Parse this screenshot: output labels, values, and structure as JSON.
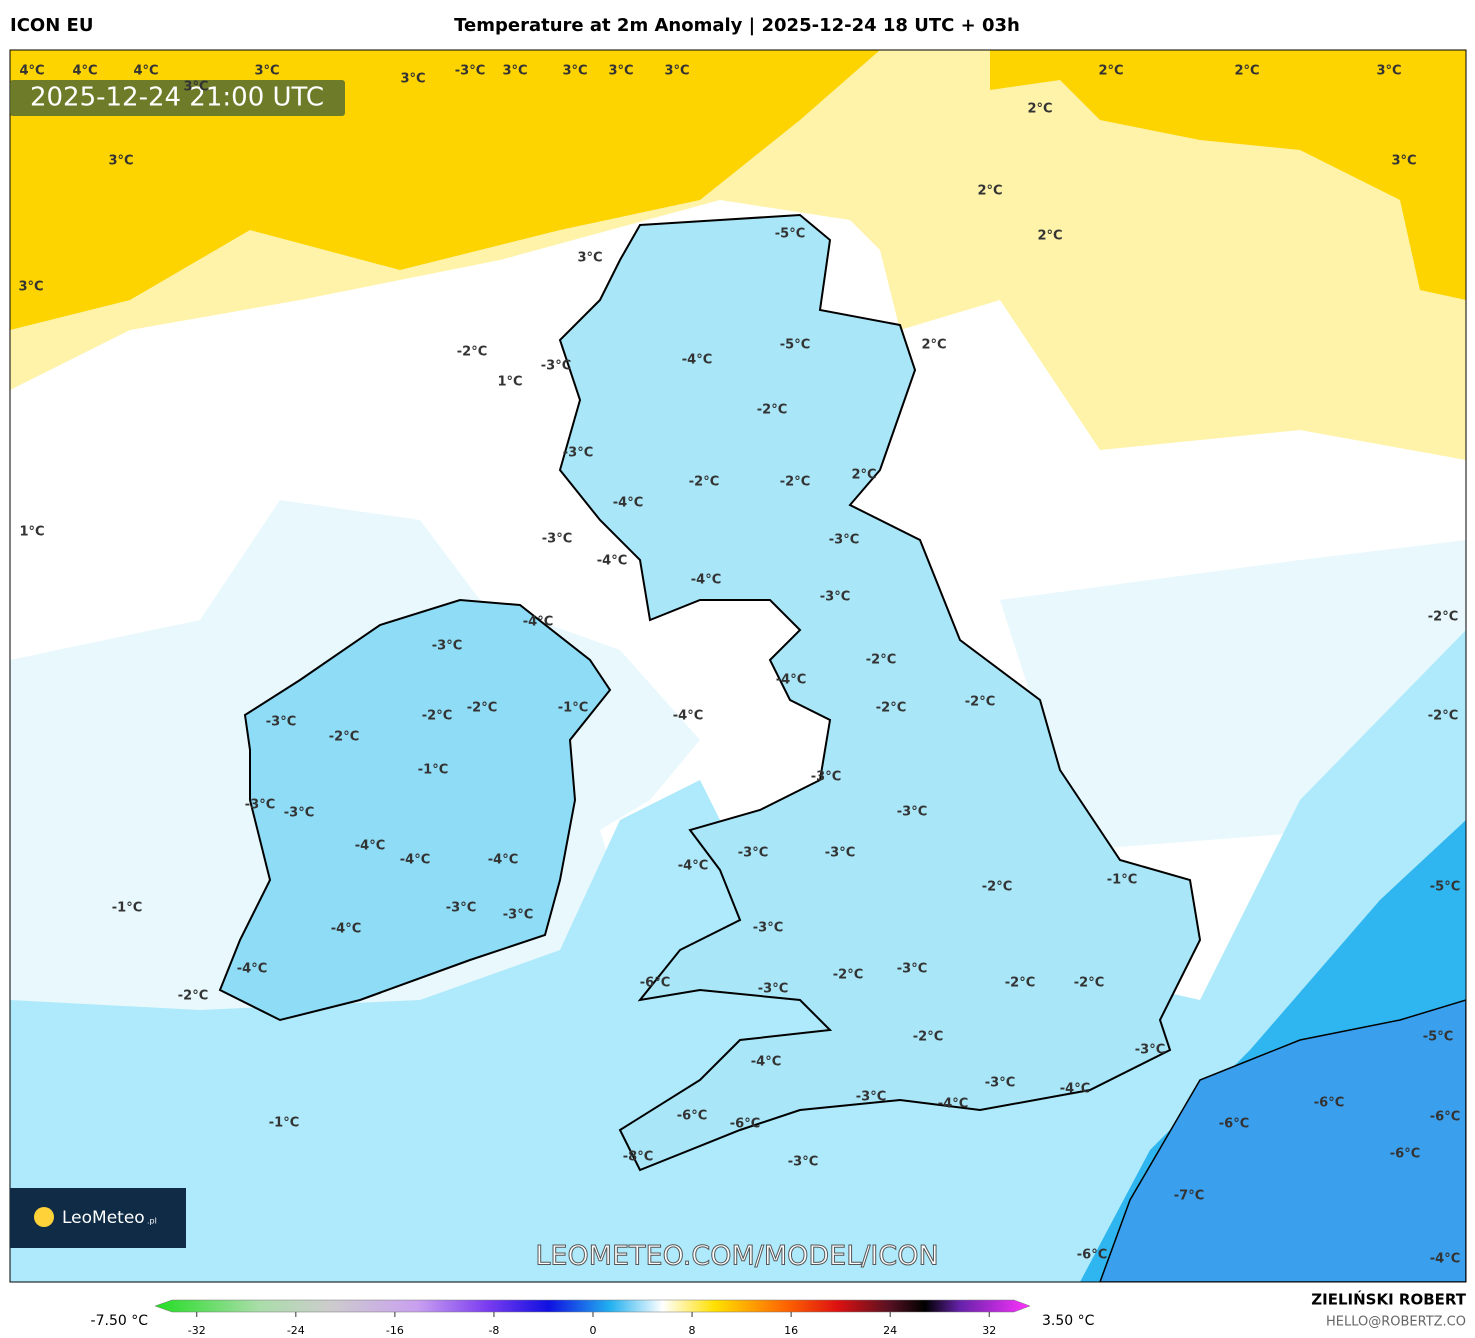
{
  "header": {
    "model": "ICON EU",
    "title": "Temperature at 2m Anomaly | 2025-12-24 18 UTC + 03h"
  },
  "timestamp": "2025-12-24 21:00 UTC",
  "watermark": "LEOMETEO.COM/MODEL/ICON",
  "logo": {
    "name": "LeoMeteo",
    "suffix": ".pl"
  },
  "footer": {
    "author": "ZIELIŃSKI ROBERT",
    "email": "HELLO@ROBERTZ.CO"
  },
  "colorbar": {
    "min_label": "-7.50 °C",
    "max_label": "3.50 °C",
    "range": [
      -34,
      34
    ],
    "ticks": [
      -32,
      -24,
      -16,
      -8,
      0,
      8,
      16,
      24,
      32
    ]
  },
  "map_labels": [
    "4°C",
    "4°C",
    "4°C",
    "3°C",
    "3°C",
    "3°C",
    "-3°C",
    "3°C",
    "3°C",
    "3°C",
    "3°C",
    "2°C",
    "2°C",
    "3°C",
    "2°C",
    "3°C",
    "3°C",
    "2°C",
    "2°C",
    "3°C",
    "3°C",
    "-5°C",
    "2°C",
    "-2°C",
    "-5°C",
    "-4°C",
    "1°C",
    "-3°C",
    "-2°C",
    "-3°C",
    "-2°C",
    "-2°C",
    "2°C",
    "1°C",
    "-4°C",
    "-3°C",
    "-3°C",
    "-4°C",
    "-4°C",
    "-3°C",
    "-4°C",
    "-3°C",
    "-2°C",
    "-2°C",
    "-4°C",
    "-2°C",
    "-2°C",
    "-2°C",
    "-1°C",
    "-2°C",
    "-4°C",
    "-3°C",
    "-2°C",
    "-2°C",
    "-1°C",
    "-3°C",
    "-3°C",
    "-3°C",
    "-3°C",
    "-4°C",
    "-4°C",
    "-3°C",
    "-3°C",
    "-4°C",
    "-4°C",
    "-1°C",
    "-2°C",
    "-5°C",
    "-1°C",
    "-3°C",
    "-3°C",
    "-3°C",
    "-4°C",
    "-2°C",
    "-3°C",
    "-2°C",
    "-2°C",
    "-6°C",
    "-4°C",
    "-3°C",
    "-2°C",
    "-2°C",
    "-3°C",
    "-5°C",
    "-4°C",
    "-3°C",
    "-4°C",
    "-3°C",
    "-4°C",
    "-6°C",
    "-6°C",
    "-6°C",
    "-6°C",
    "-6°C",
    "-1°C",
    "-6°C",
    "-8°C",
    "-3°C",
    "-7°C",
    "-6°C",
    "-4°C"
  ]
}
